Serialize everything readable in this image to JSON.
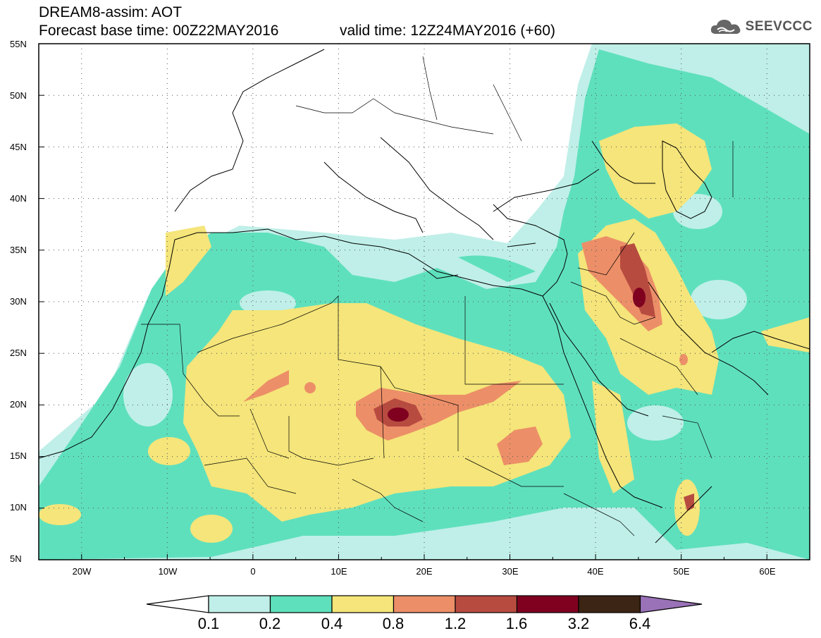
{
  "header": {
    "line1": "DREAM8-assim: AOT",
    "base_time": "Forecast base time: 00Z22MAY2016",
    "valid_time": "valid time: 12Z24MAY2016 (+60)"
  },
  "logo": {
    "text": "SEEVCCC",
    "icon": "cloud-icon"
  },
  "map": {
    "lon_range": [
      -25,
      65
    ],
    "lat_range": [
      5,
      55
    ],
    "lat_ticks": [
      "55N",
      "50N",
      "45N",
      "40N",
      "35N",
      "30N",
      "25N",
      "20N",
      "15N",
      "10N",
      "5N"
    ],
    "lon_ticks": [
      "20W",
      "10W",
      "0",
      "10E",
      "20E",
      "30E",
      "40E",
      "50E",
      "60E"
    ]
  },
  "colorbar": {
    "labels": [
      "0.1",
      "0.2",
      "0.4",
      "0.8",
      "1.2",
      "1.6",
      "3.2",
      "6.4"
    ],
    "colors": {
      "under": "#ffffff",
      "bins": [
        "#bfefe8",
        "#5fe0bd",
        "#f5e57a",
        "#ec8f68",
        "#b84b40",
        "#800020",
        "#3d2515"
      ],
      "over": "#9a72b8"
    }
  }
}
